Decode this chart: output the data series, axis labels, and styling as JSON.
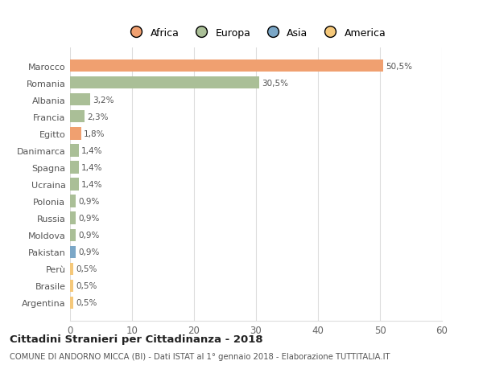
{
  "countries": [
    "Argentina",
    "Brasile",
    "Perù",
    "Pakistan",
    "Moldova",
    "Russia",
    "Polonia",
    "Ucraina",
    "Spagna",
    "Danimarca",
    "Egitto",
    "Francia",
    "Albania",
    "Romania",
    "Marocco"
  ],
  "values": [
    0.5,
    0.5,
    0.5,
    0.9,
    0.9,
    0.9,
    0.9,
    1.4,
    1.4,
    1.4,
    1.8,
    2.3,
    3.2,
    30.5,
    50.5
  ],
  "labels": [
    "0,5%",
    "0,5%",
    "0,5%",
    "0,9%",
    "0,9%",
    "0,9%",
    "0,9%",
    "1,4%",
    "1,4%",
    "1,4%",
    "1,8%",
    "2,3%",
    "3,2%",
    "30,5%",
    "50,5%"
  ],
  "colors": [
    "#F5C87A",
    "#F5C87A",
    "#F5C87A",
    "#7BA7C7",
    "#AABF97",
    "#AABF97",
    "#AABF97",
    "#AABF97",
    "#AABF97",
    "#AABF97",
    "#F0A070",
    "#AABF97",
    "#AABF97",
    "#AABF97",
    "#F0A070"
  ],
  "legend_labels": [
    "Africa",
    "Europa",
    "Asia",
    "America"
  ],
  "legend_colors": [
    "#F0A070",
    "#AABF97",
    "#7BA7C7",
    "#F5C87A"
  ],
  "title": "Cittadini Stranieri per Cittadinanza - 2018",
  "subtitle": "COMUNE DI ANDORNO MICCA (BI) - Dati ISTAT al 1° gennaio 2018 - Elaborazione TUTTITALIA.IT",
  "xlim": [
    0,
    60
  ],
  "xticks": [
    0,
    10,
    20,
    30,
    40,
    50,
    60
  ],
  "background_color": "#ffffff",
  "grid_color": "#dddddd"
}
